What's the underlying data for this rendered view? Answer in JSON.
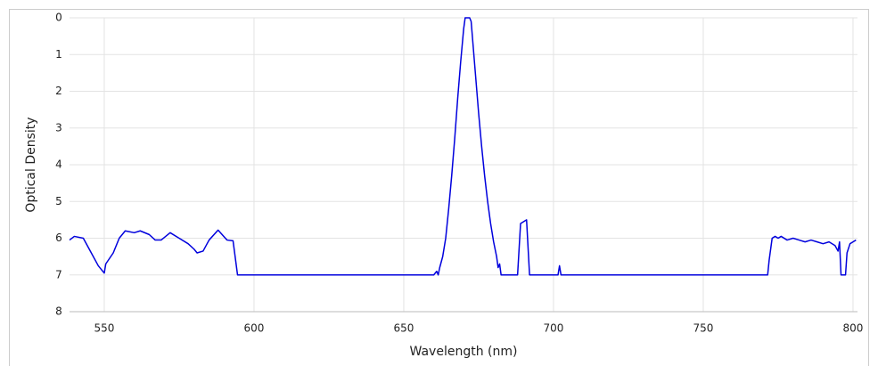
{
  "chart_data": {
    "type": "line",
    "x_label": "Wavelength (nm)",
    "y_label": "Optical Density",
    "xlim": [
      538.4,
      801.5
    ],
    "xticks": [
      550,
      600,
      650,
      700,
      750,
      800
    ],
    "ylim": [
      0,
      8
    ],
    "yticks": [
      0,
      1,
      2,
      3,
      4,
      5,
      6,
      7,
      8
    ],
    "y_reversed": true,
    "grid": true,
    "series": [
      {
        "color": "#0000dd",
        "x": [
          538.4,
          540,
          543,
          545,
          548,
          550,
          550.5,
          553,
          555,
          557,
          560,
          562,
          565,
          567,
          569,
          572,
          575,
          578,
          580,
          581,
          583,
          585,
          588,
          591,
          593,
          594.5,
          660,
          661,
          661.5,
          662,
          663,
          664,
          665,
          666,
          667,
          668,
          669,
          670,
          670.5,
          672,
          672.5,
          673,
          674,
          675,
          676,
          677,
          678,
          679,
          680,
          681,
          681.5,
          682,
          682.5,
          688,
          689,
          691,
          692,
          701.5,
          702,
          702.5,
          771.5,
          772,
          773,
          774,
          775,
          776,
          778,
          780,
          782,
          784,
          786,
          788,
          790,
          792,
          794,
          795,
          795.5,
          796,
          797.5,
          798,
          799,
          800,
          801
        ],
        "values": [
          6.05,
          5.95,
          6.0,
          6.3,
          6.75,
          6.95,
          6.7,
          6.4,
          6.0,
          5.8,
          5.85,
          5.8,
          5.9,
          6.05,
          6.05,
          5.85,
          6.0,
          6.15,
          6.3,
          6.4,
          6.35,
          6.05,
          5.78,
          6.05,
          6.07,
          7.0,
          7.0,
          6.9,
          7.0,
          6.8,
          6.5,
          6.0,
          5.2,
          4.3,
          3.3,
          2.2,
          1.2,
          0.3,
          0,
          0,
          0.1,
          0.6,
          1.6,
          2.6,
          3.5,
          4.3,
          5.0,
          5.6,
          6.1,
          6.5,
          6.8,
          6.7,
          7.0,
          7.0,
          5.6,
          5.5,
          7.0,
          7.0,
          6.75,
          7.0,
          7.0,
          6.6,
          6.0,
          5.95,
          6.0,
          5.95,
          6.05,
          6.0,
          6.05,
          6.1,
          6.05,
          6.1,
          6.15,
          6.1,
          6.2,
          6.35,
          6.1,
          7.0,
          7.0,
          6.4,
          6.15,
          6.1,
          6.05
        ]
      }
    ]
  }
}
